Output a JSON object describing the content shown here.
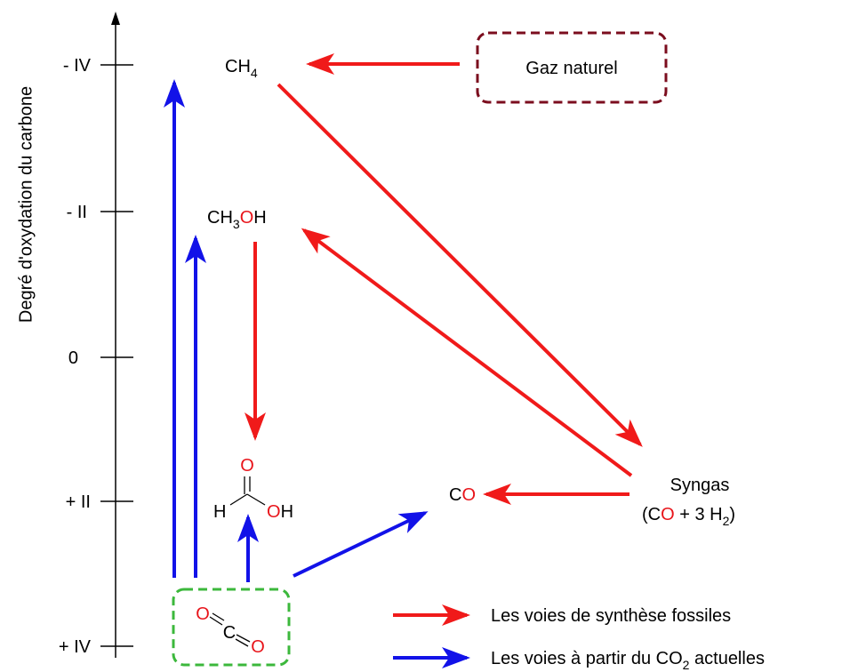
{
  "axis": {
    "label": "Degré d'oxydation du carbone",
    "ticks": [
      "- IV",
      "- II",
      "0",
      "+ II",
      "+ IV"
    ]
  },
  "nodes": {
    "ch4": {
      "main": "CH",
      "sub": "4"
    },
    "methanol": {
      "main": "CH",
      "sub": "3",
      "o": "O",
      "h": "H"
    },
    "formic": {
      "o_top": "O",
      "h_left": "H",
      "o_right": "O",
      "h_right": "H"
    },
    "co": {
      "c": "C",
      "o": "O"
    },
    "syngas": {
      "title": "Syngas",
      "open": "(C",
      "o": "O",
      "mid": " + 3 H",
      "sub": "2",
      "close": ")"
    },
    "co2": {
      "o1": "O",
      "c": "C",
      "o2": "O"
    },
    "natural_gas": "Gaz naturel"
  },
  "legend": {
    "fossil": "Les voies de synthèse fossiles",
    "co2": {
      "text": "Les voies à partir du CO",
      "sub": "2",
      "tail": " actuelles"
    }
  }
}
